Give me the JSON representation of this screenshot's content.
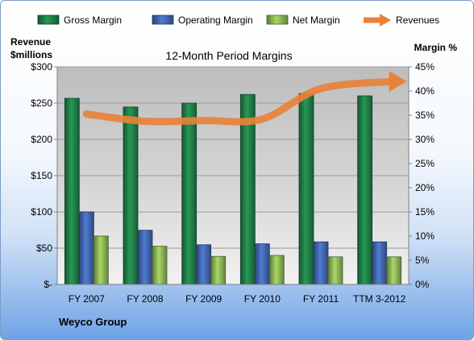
{
  "chart_data": {
    "type": "bar",
    "title": "12-Month Period Margins",
    "y_left_label": [
      "Revenue",
      "$millions"
    ],
    "y_right_label": "Margin %",
    "footer": "Weyco Group",
    "categories": [
      "FY 2007",
      "FY 2008",
      "FY 2009",
      "FY 2010",
      "FY 2011",
      "TTM 3-2012"
    ],
    "y_left": {
      "min": 0,
      "max": 300,
      "ticks": [
        0,
        50,
        100,
        150,
        200,
        250,
        300
      ],
      "tick_labels": [
        "$-",
        "$50",
        "$100",
        "$150",
        "$200",
        "$250",
        "$300"
      ]
    },
    "y_right": {
      "min": 0,
      "max": 45,
      "ticks": [
        0,
        5,
        10,
        15,
        20,
        25,
        30,
        35,
        40,
        45
      ],
      "tick_labels": [
        "0%",
        "5%",
        "10%",
        "15%",
        "20%",
        "25%",
        "30%",
        "35%",
        "40%",
        "45%"
      ]
    },
    "series": [
      {
        "name": "Gross Margin",
        "type": "bar",
        "axis": "right",
        "unit": "%",
        "color": "#1f7a45",
        "values": [
          38.5,
          36.7,
          37.5,
          39.3,
          39.5,
          39.0
        ]
      },
      {
        "name": "Operating Margin",
        "type": "bar",
        "axis": "right",
        "unit": "%",
        "color": "#3f63a8",
        "values": [
          15.0,
          11.2,
          8.2,
          8.4,
          8.8,
          8.8
        ]
      },
      {
        "name": "Net Margin",
        "type": "bar",
        "axis": "right",
        "unit": "%",
        "color": "#86ad52",
        "values": [
          10.0,
          7.9,
          5.8,
          6.0,
          5.7,
          5.7
        ]
      },
      {
        "name": "Revenues",
        "type": "line",
        "axis": "left",
        "unit": "$millions",
        "color": "#e8823a",
        "values": [
          235,
          225,
          226,
          228,
          270,
          280
        ]
      }
    ],
    "legend_position": "top",
    "grid": true
  }
}
